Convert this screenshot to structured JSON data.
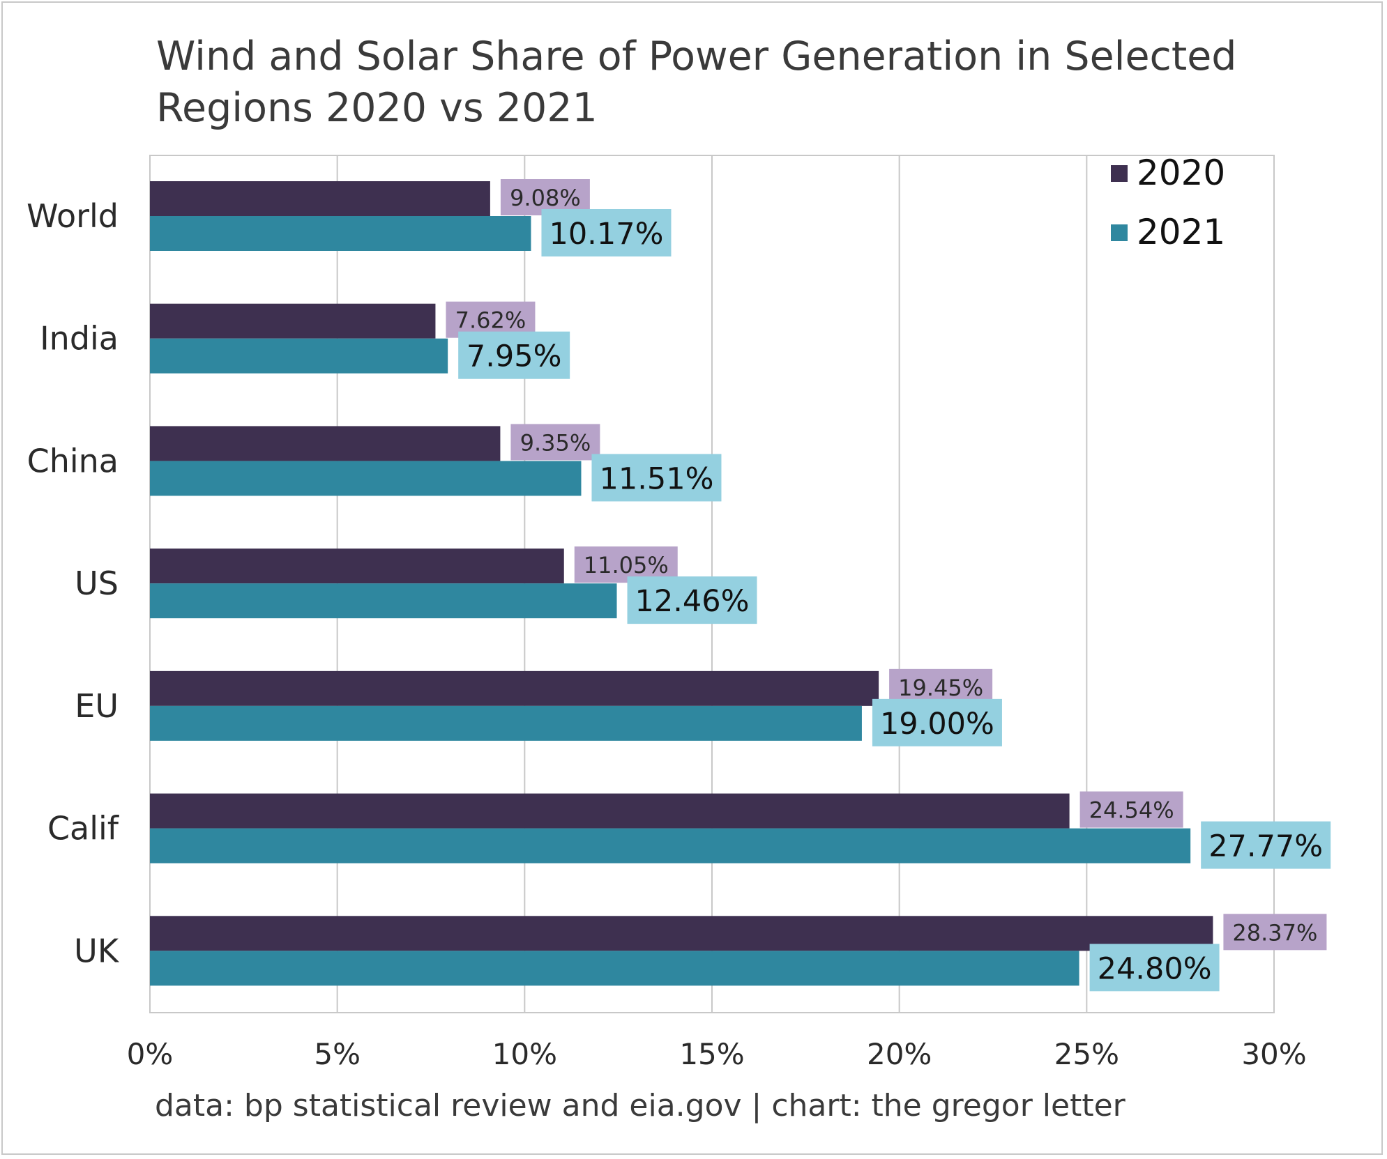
{
  "colors": {
    "series_2020": "#3e3050",
    "series_2021": "#2f879f",
    "label_2020_bg": "#b7a3c9",
    "label_2021_bg": "#94d0e0",
    "grid": "#c8c8c8",
    "text": "#3a3a3a"
  },
  "chart_data": {
    "type": "bar",
    "orientation": "horizontal",
    "title": "Wind and Solar Share of Power Generation in Selected Regions 2020 vs 2021",
    "source": "data: bp statistical review and eia.gov | chart: the gregor letter",
    "categories": [
      "World",
      "India",
      "China",
      "US",
      "EU",
      "Calif",
      "UK"
    ],
    "series": [
      {
        "name": "2020",
        "values": [
          9.08,
          7.62,
          9.35,
          11.05,
          19.45,
          24.54,
          28.37
        ],
        "labels": [
          "9.08%",
          "7.62%",
          "9.35%",
          "11.05%",
          "19.45%",
          "24.54%",
          "28.37%"
        ]
      },
      {
        "name": "2021",
        "values": [
          10.17,
          7.95,
          11.51,
          12.46,
          19.0,
          27.77,
          24.8
        ],
        "labels": [
          "10.17%",
          "7.95%",
          "11.51%",
          "12.46%",
          "19.00%",
          "27.77%",
          "24.80%"
        ]
      }
    ],
    "xlim": [
      0,
      30
    ],
    "xticks": [
      0,
      5,
      10,
      15,
      20,
      25,
      30
    ],
    "xtick_labels": [
      "0%",
      "5%",
      "10%",
      "15%",
      "20%",
      "25%",
      "30%"
    ],
    "grid": true,
    "legend_position": "top-right"
  }
}
